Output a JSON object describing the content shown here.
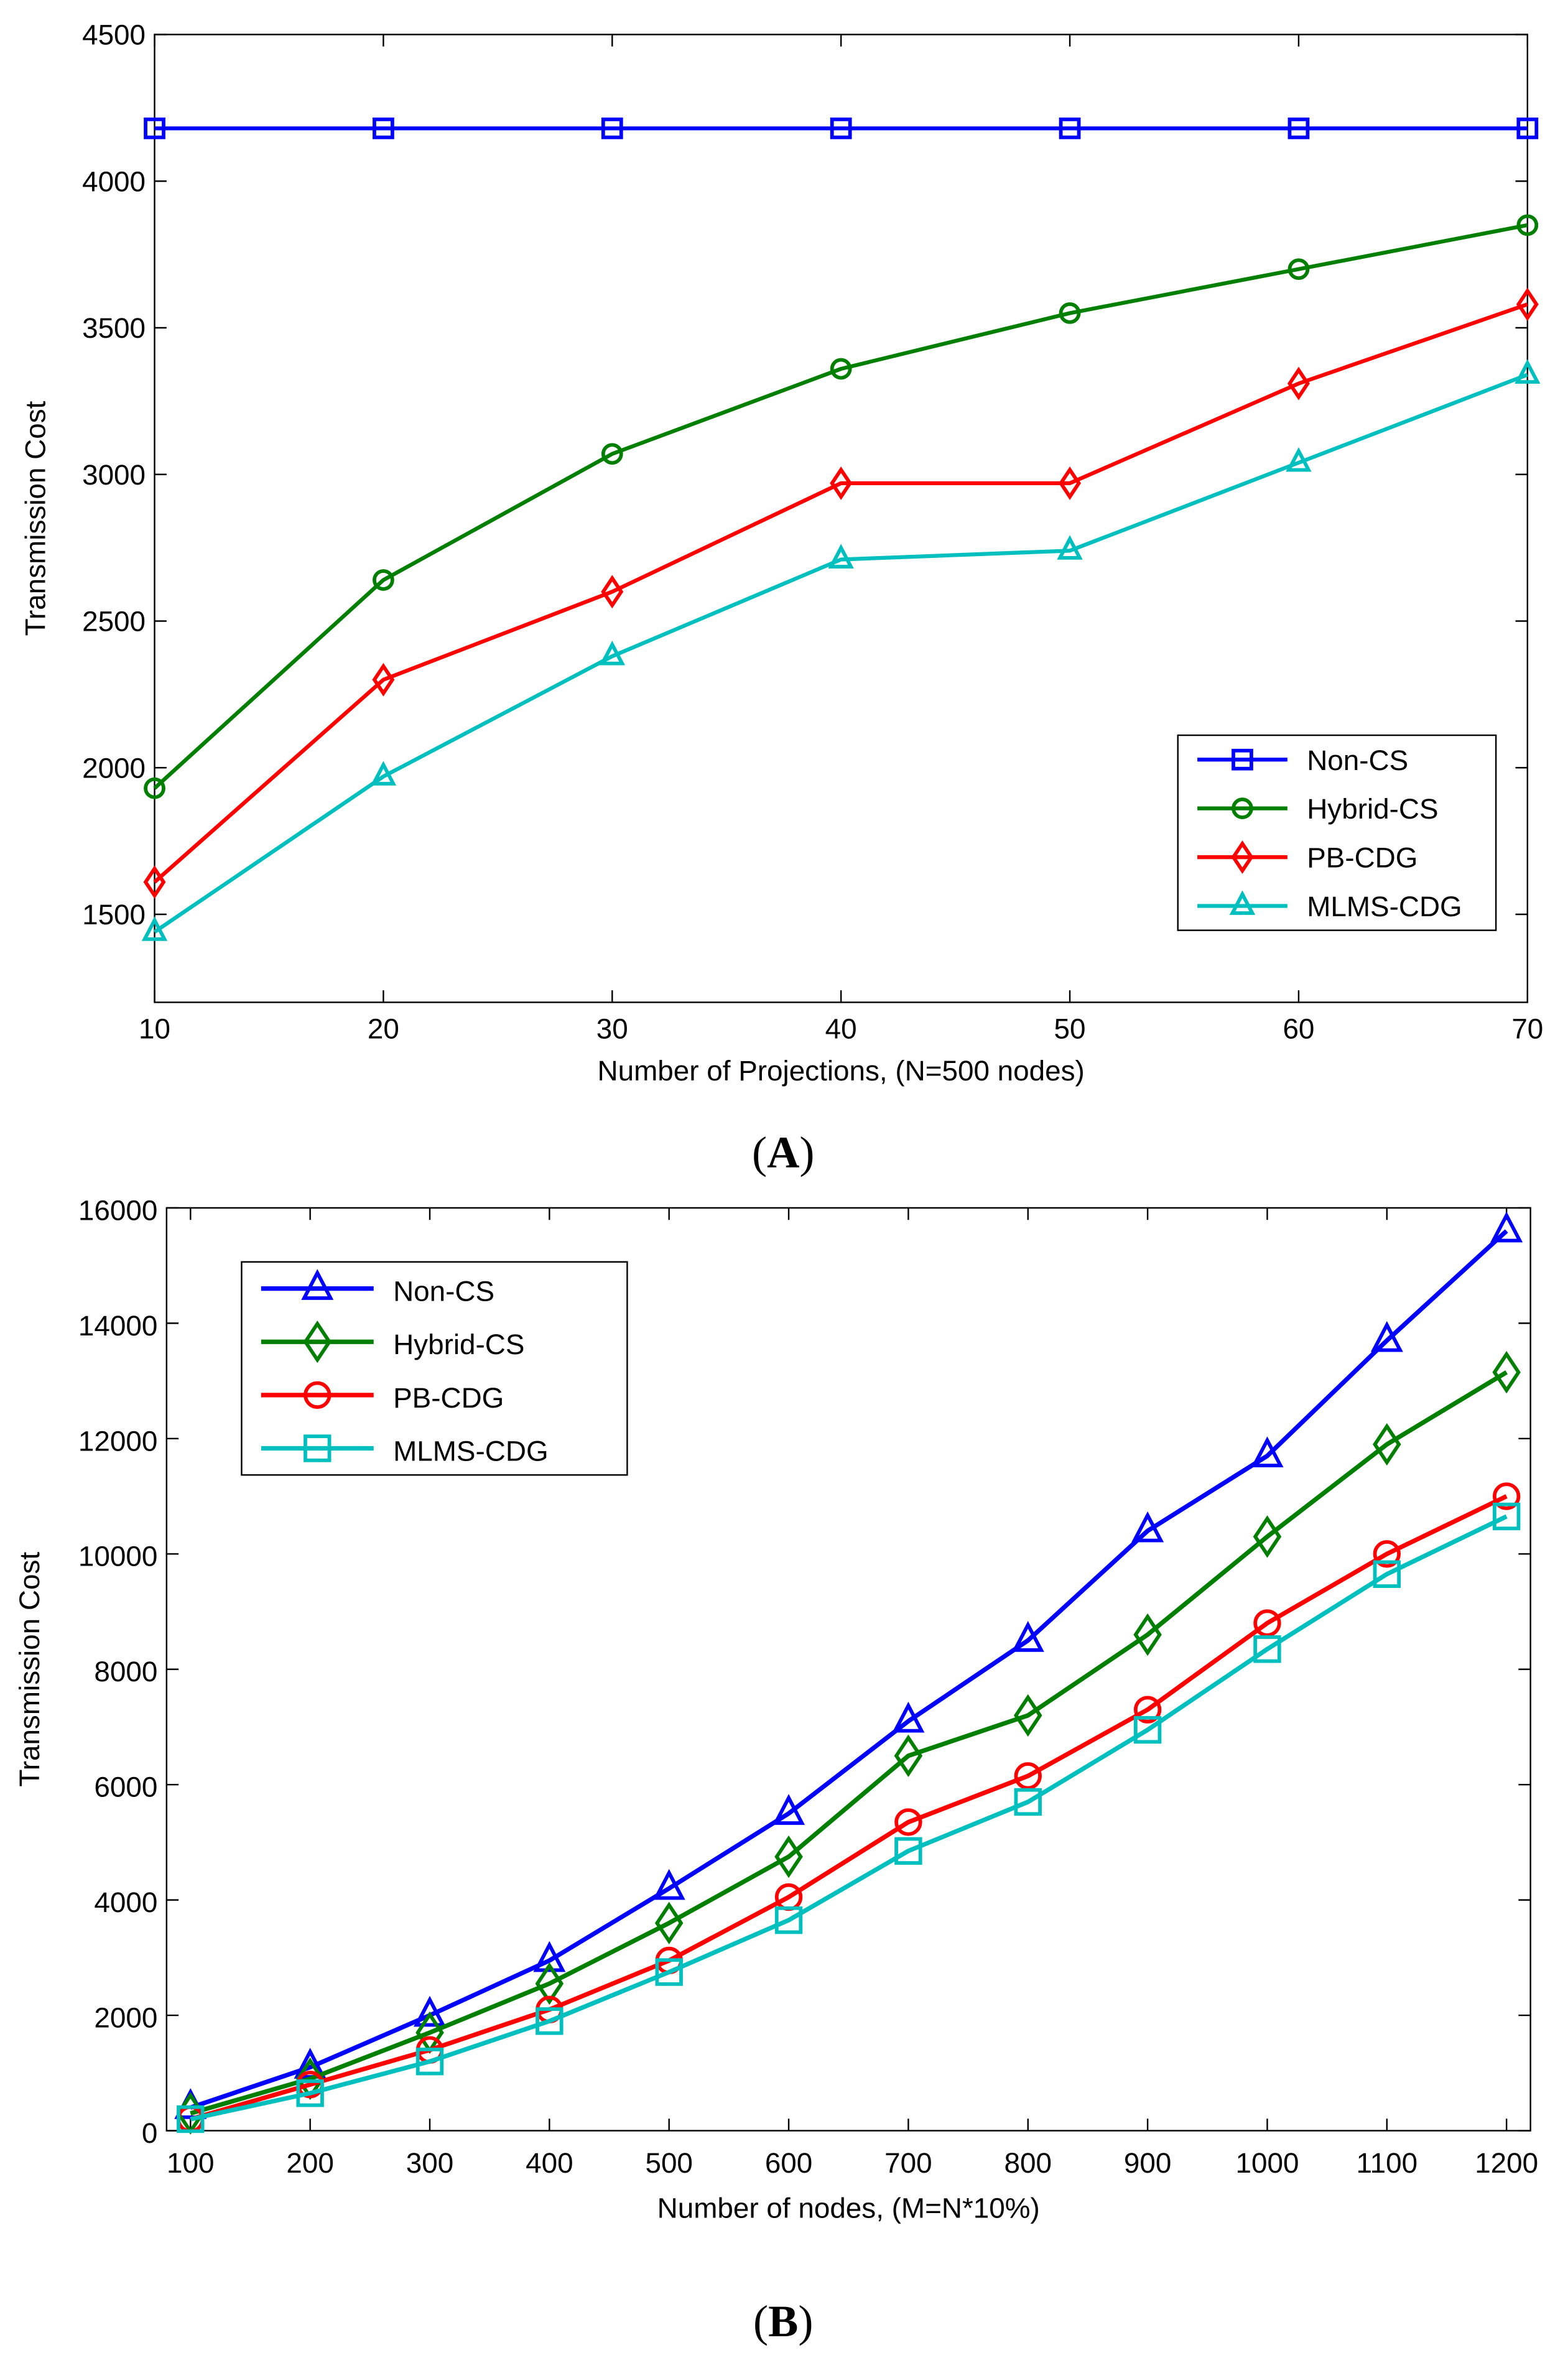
{
  "chart_data": [
    {
      "type": "line",
      "caption_open": "(",
      "caption_letter": "A",
      "caption_close": ")",
      "xlabel": "Number of Projections, (N=500 nodes)",
      "ylabel": "Transmission Cost",
      "xlim": [
        10,
        70
      ],
      "ylim": [
        1200,
        4500
      ],
      "xticks": [
        10,
        20,
        30,
        40,
        50,
        60,
        70
      ],
      "yticks": [
        1500,
        2000,
        2500,
        3000,
        3500,
        4000,
        4500
      ],
      "legend_position": "bottom-right",
      "x": [
        10,
        20,
        30,
        40,
        50,
        60,
        70
      ],
      "series": [
        {
          "name": "Non-CS",
          "color": "#0000FF",
          "marker": "square",
          "values": [
            4180,
            4180,
            4180,
            4180,
            4180,
            4180,
            4180
          ]
        },
        {
          "name": "Hybrid-CS",
          "color": "#007F00",
          "marker": "circle",
          "values": [
            1930,
            2640,
            3070,
            3360,
            3550,
            3700,
            3850
          ]
        },
        {
          "name": "PB-CDG",
          "color": "#FF0000",
          "marker": "diamond",
          "values": [
            1610,
            2300,
            2600,
            2970,
            2970,
            3310,
            3580
          ]
        },
        {
          "name": "MLMS-CDG",
          "color": "#00BFBF",
          "marker": "triangle",
          "values": [
            1440,
            1970,
            2380,
            2710,
            2740,
            3040,
            3340
          ]
        }
      ]
    },
    {
      "type": "line",
      "caption_open": "(",
      "caption_letter": "B",
      "caption_close": ")",
      "xlabel": "Number of nodes, (M=N*10%)",
      "ylabel": "Transmission Cost",
      "xlim": [
        80,
        1220
      ],
      "ylim": [
        0,
        16000
      ],
      "xticks": [
        100,
        200,
        300,
        400,
        500,
        600,
        700,
        800,
        900,
        1000,
        1100,
        1200
      ],
      "yticks": [
        0,
        2000,
        4000,
        6000,
        8000,
        10000,
        12000,
        14000,
        16000
      ],
      "legend_position": "top-left",
      "x": [
        100,
        200,
        300,
        400,
        500,
        600,
        700,
        800,
        900,
        1000,
        1100,
        1200
      ],
      "series": [
        {
          "name": "Non-CS",
          "color": "#0000FF",
          "marker": "triangle",
          "values": [
            400,
            1100,
            2000,
            2950,
            4200,
            5500,
            7100,
            8500,
            10400,
            11700,
            13700,
            15600
          ]
        },
        {
          "name": "Hybrid-CS",
          "color": "#007F00",
          "marker": "diamond",
          "values": [
            300,
            900,
            1700,
            2550,
            3600,
            4750,
            6500,
            7200,
            8600,
            10300,
            11900,
            13150
          ]
        },
        {
          "name": "PB-CDG",
          "color": "#FF0000",
          "marker": "circle",
          "values": [
            200,
            800,
            1400,
            2100,
            2950,
            4050,
            5350,
            6150,
            7300,
            8800,
            10000,
            11000
          ]
        },
        {
          "name": "MLMS-CDG",
          "color": "#00BFBF",
          "marker": "square",
          "values": [
            200,
            650,
            1200,
            1900,
            2750,
            3650,
            4850,
            5700,
            6950,
            8350,
            9650,
            10650
          ]
        }
      ]
    }
  ]
}
